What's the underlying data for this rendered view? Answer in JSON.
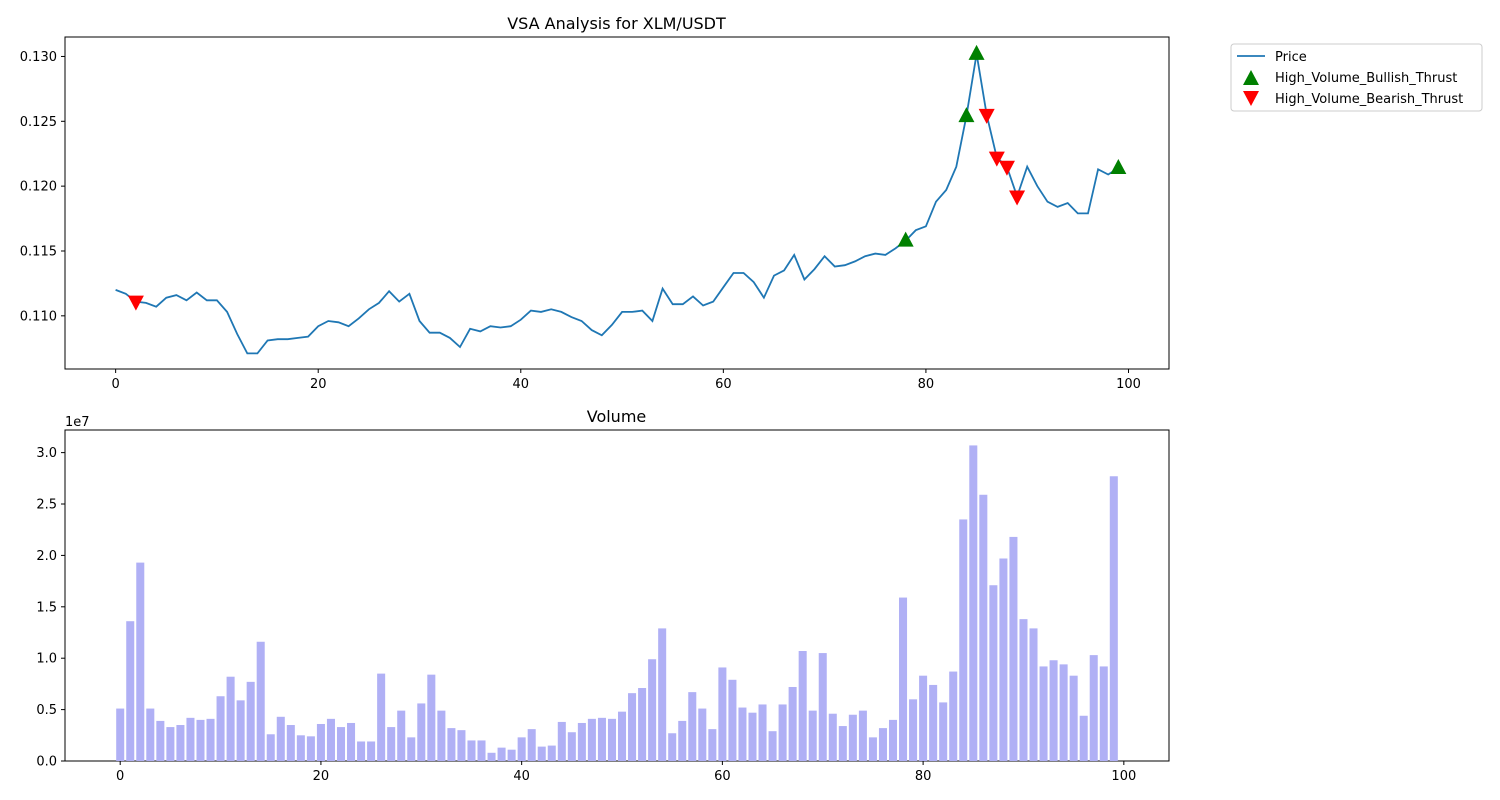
{
  "chart_data": [
    {
      "type": "line",
      "title": "VSA Analysis for XLM/USDT",
      "xlim": [
        -5,
        104
      ],
      "ylim": [
        0.1059,
        0.1315
      ],
      "xticks": [
        0,
        20,
        40,
        60,
        80,
        100
      ],
      "yticks": [
        0.11,
        0.115,
        0.12,
        0.125,
        0.13
      ],
      "ytick_labels": [
        "0.110",
        "0.115",
        "0.120",
        "0.125",
        "0.130"
      ],
      "series": [
        {
          "name": "Price",
          "color": "#1f77b4",
          "x": [
            0,
            1,
            2,
            3,
            4,
            5,
            6,
            7,
            8,
            9,
            10,
            11,
            12,
            13,
            14,
            15,
            16,
            17,
            18,
            19,
            20,
            21,
            22,
            23,
            24,
            25,
            26,
            27,
            28,
            29,
            30,
            31,
            32,
            33,
            34,
            35,
            36,
            37,
            38,
            39,
            40,
            41,
            42,
            43,
            44,
            45,
            46,
            47,
            48,
            49,
            50,
            51,
            52,
            53,
            54,
            55,
            56,
            57,
            58,
            59,
            60,
            61,
            62,
            63,
            64,
            65,
            66,
            67,
            68,
            69,
            70,
            71,
            72,
            73,
            74,
            75,
            76,
            77,
            78,
            79,
            80,
            81,
            82,
            83,
            84,
            85,
            86,
            87,
            88,
            89,
            90,
            91,
            92,
            93,
            94,
            95,
            96,
            97,
            98,
            99
          ],
          "values": [
            0.112,
            0.1117,
            0.1111,
            0.111,
            0.1107,
            0.1114,
            0.1116,
            0.1112,
            0.1118,
            0.1112,
            0.1112,
            0.1103,
            0.1086,
            0.1071,
            0.1071,
            0.1081,
            0.1082,
            0.1082,
            0.1083,
            0.1084,
            0.1092,
            0.1096,
            0.1095,
            0.1092,
            0.1098,
            0.1105,
            0.111,
            0.1119,
            0.1111,
            0.1117,
            0.1096,
            0.1087,
            0.1087,
            0.1083,
            0.1076,
            0.109,
            0.1088,
            0.1092,
            0.1091,
            0.1092,
            0.1097,
            0.1104,
            0.1103,
            0.1105,
            0.1103,
            0.1099,
            0.1096,
            0.1089,
            0.1085,
            0.1093,
            0.1103,
            0.1103,
            0.1104,
            0.1096,
            0.1121,
            0.1109,
            0.1109,
            0.1115,
            0.1108,
            0.1111,
            0.1122,
            0.1133,
            0.1133,
            0.1126,
            0.1114,
            0.1131,
            0.1135,
            0.1147,
            0.1128,
            0.1136,
            0.1146,
            0.1138,
            0.1139,
            0.1142,
            0.1146,
            0.1148,
            0.1147,
            0.1152,
            0.1158,
            0.1166,
            0.1169,
            0.1188,
            0.1197,
            0.1215,
            0.1254,
            0.1302,
            0.1255,
            0.1222,
            0.1215,
            0.1192,
            0.1215,
            0.12,
            0.1188,
            0.1184,
            0.1187,
            0.1179,
            0.1179,
            0.1213,
            0.1209,
            0.1214
          ]
        },
        {
          "name": "High_Volume_Bullish_Thrust",
          "color": "#008000",
          "marker": "triangle-up",
          "x": [
            78,
            84,
            85,
            99
          ],
          "values": [
            0.1158,
            0.1254,
            0.1302,
            0.1214
          ]
        },
        {
          "name": "High_Volume_Bearish_Thrust",
          "color": "#ff0000",
          "marker": "triangle-down",
          "x": [
            2,
            86,
            87,
            88,
            89
          ],
          "values": [
            0.1111,
            0.1255,
            0.1222,
            0.1215,
            0.1192
          ]
        }
      ],
      "legend_position": "outside-top-right"
    },
    {
      "type": "bar",
      "title": "Volume",
      "offset_label": "1e7",
      "xlim": [
        -5.5,
        104.5
      ],
      "ylim": [
        0,
        3.22
      ],
      "xticks": [
        0,
        20,
        40,
        60,
        80,
        100
      ],
      "yticks": [
        0.0,
        0.5,
        1.0,
        1.5,
        2.0,
        2.5,
        3.0
      ],
      "ytick_labels": [
        "0.0",
        "0.5",
        "1.0",
        "1.5",
        "2.0",
        "2.5",
        "3.0"
      ],
      "color": "#b0b0f5",
      "x": [
        0,
        1,
        2,
        3,
        4,
        5,
        6,
        7,
        8,
        9,
        10,
        11,
        12,
        13,
        14,
        15,
        16,
        17,
        18,
        19,
        20,
        21,
        22,
        23,
        24,
        25,
        26,
        27,
        28,
        29,
        30,
        31,
        32,
        33,
        34,
        35,
        36,
        37,
        38,
        39,
        40,
        41,
        42,
        43,
        44,
        45,
        46,
        47,
        48,
        49,
        50,
        51,
        52,
        53,
        54,
        55,
        56,
        57,
        58,
        59,
        60,
        61,
        62,
        63,
        64,
        65,
        66,
        67,
        68,
        69,
        70,
        71,
        72,
        73,
        74,
        75,
        76,
        77,
        78,
        79,
        80,
        81,
        82,
        83,
        84,
        85,
        86,
        87,
        88,
        89,
        90,
        91,
        92,
        93,
        94,
        95,
        96,
        97,
        98,
        99
      ],
      "values": [
        0.51,
        1.36,
        1.93,
        0.51,
        0.39,
        0.33,
        0.35,
        0.42,
        0.4,
        0.41,
        0.63,
        0.82,
        0.59,
        0.77,
        1.16,
        0.26,
        0.43,
        0.35,
        0.25,
        0.24,
        0.36,
        0.41,
        0.33,
        0.37,
        0.19,
        0.19,
        0.85,
        0.33,
        0.49,
        0.23,
        0.56,
        0.84,
        0.49,
        0.32,
        0.3,
        0.2,
        0.2,
        0.08,
        0.13,
        0.11,
        0.23,
        0.31,
        0.14,
        0.15,
        0.38,
        0.28,
        0.37,
        0.41,
        0.42,
        0.41,
        0.48,
        0.66,
        0.71,
        0.99,
        1.29,
        0.27,
        0.39,
        0.67,
        0.51,
        0.31,
        0.91,
        0.79,
        0.52,
        0.47,
        0.55,
        0.29,
        0.55,
        0.72,
        1.07,
        0.49,
        1.05,
        0.46,
        0.34,
        0.45,
        0.49,
        0.23,
        0.32,
        0.4,
        1.59,
        0.6,
        0.83,
        0.74,
        0.57,
        0.87,
        2.35,
        3.07,
        2.59,
        1.71,
        1.97,
        2.18,
        1.38,
        1.29,
        0.92,
        0.98,
        0.94,
        0.83,
        0.44,
        1.03,
        0.92,
        2.77
      ]
    }
  ]
}
